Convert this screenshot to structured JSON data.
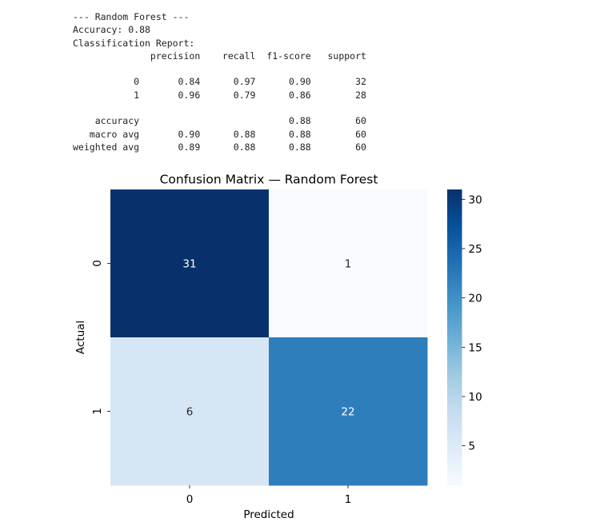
{
  "report": {
    "lines": [
      "--- Random Forest ---",
      "Accuracy: 0.88",
      "Classification Report:",
      "              precision    recall  f1-score   support",
      "",
      "           0       0.84      0.97      0.90        32",
      "           1       0.96      0.79      0.86        28",
      "",
      "    accuracy                           0.88        60",
      "   macro avg       0.90      0.88      0.88        60",
      "weighted avg       0.89      0.88      0.88        60"
    ]
  },
  "chart_data": {
    "type": "heatmap",
    "title": "Confusion Matrix — Random Forest",
    "xlabel": "Predicted",
    "ylabel": "Actual",
    "x_categories": [
      "0",
      "1"
    ],
    "y_categories": [
      "0",
      "1"
    ],
    "values": [
      [
        31,
        1
      ],
      [
        6,
        22
      ]
    ],
    "colormap": "Blues",
    "colorbar": {
      "ticks": [
        "5",
        "10",
        "15",
        "20",
        "25",
        "30"
      ],
      "range": [
        1,
        31
      ]
    },
    "cell_colors": {
      "r0c0": "#08306b",
      "r0c1": "#f7fbff",
      "r1c0": "#d6e6f4",
      "r1c1": "#2e7ebc"
    },
    "annotation_colors": {
      "dark_cell": "#ffffff",
      "light_cell": "#262626"
    }
  }
}
